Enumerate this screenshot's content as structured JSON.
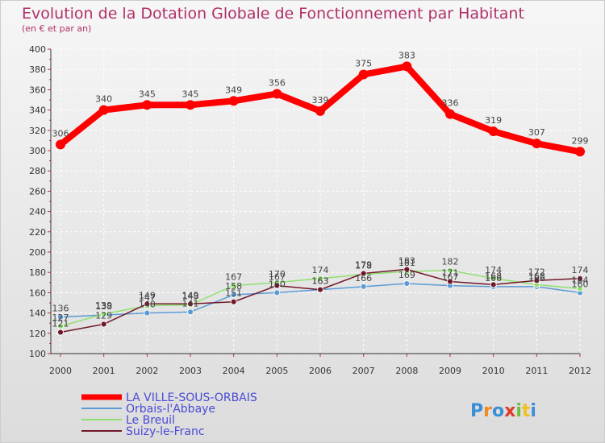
{
  "chart_data": {
    "type": "line",
    "title": "Evolution de la Dotation Globale de Fonctionnement par Habitant",
    "subtitle": "(en € et par an)",
    "xlabel": "",
    "ylabel": "",
    "x": [
      "2000",
      "2001",
      "2002",
      "2003",
      "2004",
      "2005",
      "2006",
      "2007",
      "2008",
      "2009",
      "2010",
      "2011",
      "2012"
    ],
    "ylim": [
      100,
      400
    ],
    "yticks": [
      100,
      120,
      140,
      160,
      180,
      200,
      220,
      240,
      260,
      280,
      300,
      320,
      340,
      360,
      380,
      400
    ],
    "grid": true,
    "legend_position": "bottom-left",
    "series": [
      {
        "name": "LA VILLE-SOUS-ORBAIS",
        "color": "#ff0000",
        "values": [
          306,
          340,
          345,
          345,
          349,
          356,
          339,
          375,
          383,
          336,
          319,
          307,
          299
        ]
      },
      {
        "name": "Orbais-l'Abbaye",
        "color": "#5b9bd5",
        "values": [
          136,
          138,
          140,
          141,
          158,
          160,
          163,
          166,
          169,
          167,
          166,
          166,
          160
        ]
      },
      {
        "name": "Le Breuil",
        "color": "#90e070",
        "values": [
          127,
          139,
          147,
          148,
          167,
          170,
          174,
          178,
          181,
          182,
          174,
          168,
          164
        ]
      },
      {
        "name": "Suizy-le-Franc",
        "color": "#701828",
        "values": [
          121,
          129,
          149,
          149,
          151,
          167,
          163,
          179,
          183,
          171,
          168,
          172,
          174
        ]
      }
    ]
  },
  "logo": {
    "text": "Proxiti",
    "letters": [
      "P",
      "r",
      "o",
      "x",
      "i",
      "t",
      "i"
    ],
    "colors": [
      "#3a8ed8",
      "#f08a1c",
      "#3a8ed8",
      "#e23a2a",
      "#6cbf3a",
      "#f0c020",
      "#3a8ed8"
    ]
  }
}
